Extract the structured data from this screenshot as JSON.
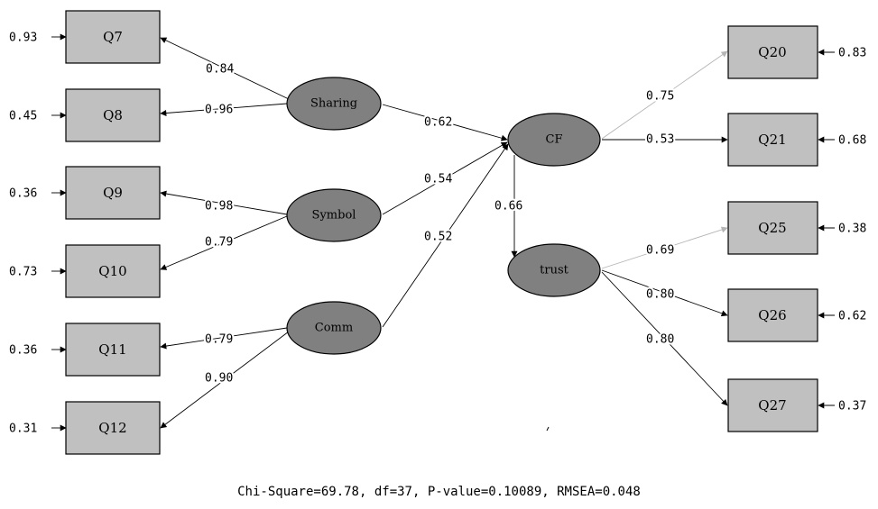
{
  "latents": {
    "sharing": "Sharing",
    "symbol": "Symbol",
    "comm": "Comm",
    "cf": "CF",
    "trust": "trust"
  },
  "indicators": {
    "q7": {
      "label": "Q7",
      "error": "0.93",
      "loading": "0.84"
    },
    "q8": {
      "label": "Q8",
      "error": "0.45",
      "loading": "0.96"
    },
    "q9": {
      "label": "Q9",
      "error": "0.36",
      "loading": "0.98"
    },
    "q10": {
      "label": "Q10",
      "error": "0.73",
      "loading": "0.79"
    },
    "q11": {
      "label": "Q11",
      "error": "0.36",
      "loading": "0.79"
    },
    "q12": {
      "label": "Q12",
      "error": "0.31",
      "loading": "0.90"
    },
    "q20": {
      "label": "Q20",
      "error": "0.83",
      "loading": "0.75"
    },
    "q21": {
      "label": "Q21",
      "error": "0.68",
      "loading": "0.53"
    },
    "q25": {
      "label": "Q25",
      "error": "0.38",
      "loading": "0.69"
    },
    "q26": {
      "label": "Q26",
      "error": "0.62",
      "loading": "0.80"
    },
    "q27": {
      "label": "Q27",
      "error": "0.37",
      "loading": "0.80"
    }
  },
  "structural": {
    "sharing_cf": "0.62",
    "symbol_cf": "0.54",
    "comm_cf": "0.52",
    "cf_trust": "0.66"
  },
  "fit_statistics": "Chi-Square=69.78, df=37, P-value=0.10089, RMSEA=0.048"
}
